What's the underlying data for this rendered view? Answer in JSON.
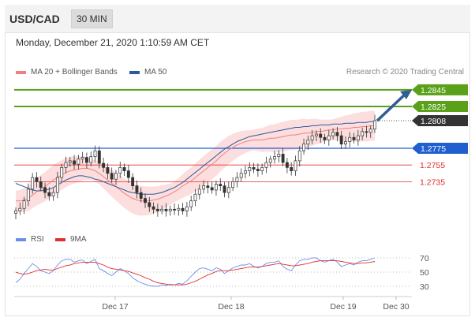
{
  "header": {
    "pair": "USD/CAD",
    "timeframe": "30 MIN",
    "datetime": "Monday, December 21, 2020 1:10:59 AM CET"
  },
  "legend": {
    "items": [
      {
        "label": "MA 20 + Bollinger Bands",
        "color": "#f08080"
      },
      {
        "label": "MA 50",
        "color": "#2c5aa0"
      }
    ],
    "credit": "Research © 2020 Trading Central"
  },
  "rsi_legend": {
    "items": [
      {
        "label": "RSI",
        "color": "#6b8ee8"
      },
      {
        "label": "9MA",
        "color": "#e03030"
      }
    ]
  },
  "chart_data": {
    "type": "line",
    "title": "USD/CAD",
    "price_levels": [
      {
        "value": 1.2845,
        "label": "1.2845",
        "kind": "target",
        "color": "#5aa019"
      },
      {
        "value": 1.2825,
        "label": "1.2825",
        "kind": "target",
        "color": "#5aa019"
      },
      {
        "value": 1.2808,
        "label": "1.2808",
        "kind": "current",
        "color": "#333333"
      },
      {
        "value": 1.2775,
        "label": "1.2775",
        "kind": "pivot",
        "color": "#1f5fd0"
      },
      {
        "value": 1.2755,
        "label": "1.2755",
        "kind": "support",
        "color": "#e03030"
      },
      {
        "value": 1.2735,
        "label": "1.2735",
        "kind": "support",
        "color": "#e03030"
      }
    ],
    "x_ticks": [
      "Dec 17",
      "Dec 18",
      "Dec 19",
      "Dec 30"
    ],
    "price_close": [
      1.27,
      1.2703,
      1.2712,
      1.2726,
      1.274,
      1.2735,
      1.2728,
      1.2722,
      1.2718,
      1.2722,
      1.274,
      1.2752,
      1.2758,
      1.276,
      1.2756,
      1.2762,
      1.2764,
      1.2758,
      1.2765,
      1.2772,
      1.2757,
      1.2752,
      1.2745,
      1.2738,
      1.2745,
      1.2752,
      1.2748,
      1.274,
      1.273,
      1.2722,
      1.2715,
      1.271,
      1.2705,
      1.2702,
      1.27,
      1.2702,
      1.27,
      1.2702,
      1.2701,
      1.2703,
      1.27,
      1.2705,
      1.2712,
      1.272,
      1.2726,
      1.273,
      1.2728,
      1.2725,
      1.2732,
      1.273,
      1.2722,
      1.2728,
      1.2735,
      1.274,
      1.2745,
      1.2748,
      1.2752,
      1.275,
      1.2748,
      1.2752,
      1.2758,
      1.2762,
      1.2765,
      1.2768,
      1.2758,
      1.2752,
      1.2748,
      1.276,
      1.2772,
      1.278,
      1.2785,
      1.279,
      1.2792,
      1.2788,
      1.2785,
      1.279,
      1.2794,
      1.279,
      1.278,
      1.2783,
      1.2788,
      1.2785,
      1.279,
      1.2795,
      1.2794,
      1.2798,
      1.2808
    ],
    "ma20": [
      1.2712,
      1.2712,
      1.2713,
      1.2715,
      1.2719,
      1.2723,
      1.2726,
      1.2729,
      1.2733,
      1.2737,
      1.274,
      1.2743,
      1.2746,
      1.2748,
      1.2749,
      1.275,
      1.2751,
      1.2751,
      1.275,
      1.2748,
      1.2745,
      1.2741,
      1.2737,
      1.2733,
      1.2729,
      1.2725,
      1.2721,
      1.2718,
      1.2715,
      1.2713,
      1.2712,
      1.2712,
      1.2712,
      1.2713,
      1.2714,
      1.2716,
      1.2718,
      1.272,
      1.2723,
      1.2726,
      1.273,
      1.2733,
      1.2736,
      1.274,
      1.2744,
      1.2748,
      1.2752,
      1.2756,
      1.276,
      1.2765,
      1.2769,
      1.2773,
      1.2776,
      1.2779,
      1.2781,
      1.2783,
      1.2784,
      1.2785,
      1.2785,
      1.2785,
      1.2786,
      1.2787,
      1.2787,
      1.2788,
      1.2789,
      1.279,
      1.2791,
      1.2791,
      1.2792,
      1.2793,
      1.2793,
      1.2794,
      1.2795,
      1.2795,
      1.2796,
      1.2797,
      1.2797,
      1.2798,
      1.2798,
      1.2799,
      1.2799,
      1.28,
      1.28,
      1.2801,
      1.2801,
      1.2802,
      1.2802
    ],
    "ma50": [
      1.2733,
      1.2731,
      1.2729,
      1.2727,
      1.2725,
      1.2724,
      1.2724,
      1.2725,
      1.2726,
      1.2728,
      1.2731,
      1.2734,
      1.2737,
      1.2739,
      1.2741,
      1.2742,
      1.2742,
      1.2741,
      1.274,
      1.2738,
      1.2737,
      1.2735,
      1.2733,
      1.2731,
      1.2729,
      1.2727,
      1.2725,
      1.2723,
      1.2722,
      1.2721,
      1.272,
      1.272,
      1.272,
      1.272,
      1.2721,
      1.2722,
      1.2724,
      1.2726,
      1.2728,
      1.2731,
      1.2734,
      1.2738,
      1.2742,
      1.2746,
      1.275,
      1.2754,
      1.2758,
      1.2762,
      1.2766,
      1.277,
      1.2774,
      1.2777,
      1.278,
      1.2783,
      1.2785,
      1.2787,
      1.2789,
      1.279,
      1.2791,
      1.2792,
      1.2793,
      1.2794,
      1.2795,
      1.2796,
      1.2797,
      1.2798,
      1.2799,
      1.28,
      1.28,
      1.2801,
      1.2801,
      1.2802,
      1.2802,
      1.2803,
      1.2803,
      1.2803,
      1.2804,
      1.2804,
      1.2804,
      1.2805,
      1.2805,
      1.2805,
      1.2806,
      1.2806,
      1.2806,
      1.2807,
      1.2807
    ],
    "rsi_levels": [
      70,
      50,
      30
    ],
    "rsi": [
      35,
      40,
      48,
      55,
      62,
      58,
      52,
      50,
      48,
      52,
      60,
      66,
      68,
      68,
      64,
      66,
      67,
      62,
      65,
      68,
      55,
      52,
      48,
      45,
      50,
      55,
      52,
      48,
      42,
      38,
      35,
      33,
      31,
      30,
      30,
      32,
      31,
      33,
      32,
      34,
      33,
      38,
      44,
      50,
      55,
      56,
      54,
      52,
      56,
      54,
      48,
      52,
      56,
      58,
      60,
      60,
      62,
      58,
      56,
      58,
      62,
      64,
      64,
      66,
      58,
      54,
      52,
      60,
      66,
      68,
      68,
      70,
      70,
      66,
      64,
      66,
      68,
      64,
      58,
      60,
      62,
      60,
      64,
      66,
      66,
      68,
      70
    ],
    "rsi_ma": [
      50,
      48,
      47,
      48,
      50,
      52,
      53,
      54,
      53,
      53,
      55,
      57,
      59,
      60,
      62,
      63,
      64,
      64,
      64,
      64,
      62,
      60,
      57,
      55,
      54,
      53,
      52,
      51,
      49,
      47,
      45,
      42,
      40,
      37,
      35,
      34,
      33,
      32,
      32,
      32,
      32,
      33,
      35,
      37,
      40,
      43,
      46,
      48,
      51,
      52,
      52,
      52,
      53,
      54,
      55,
      56,
      57,
      57,
      57,
      58,
      59,
      60,
      61,
      62,
      61,
      60,
      59,
      59,
      60,
      61,
      62,
      64,
      65,
      66,
      66,
      66,
      66,
      66,
      65,
      64,
      63,
      62,
      62,
      63,
      63,
      64,
      65
    ],
    "projection_arrow": {
      "from": 1.2808,
      "to": 1.2845
    }
  }
}
